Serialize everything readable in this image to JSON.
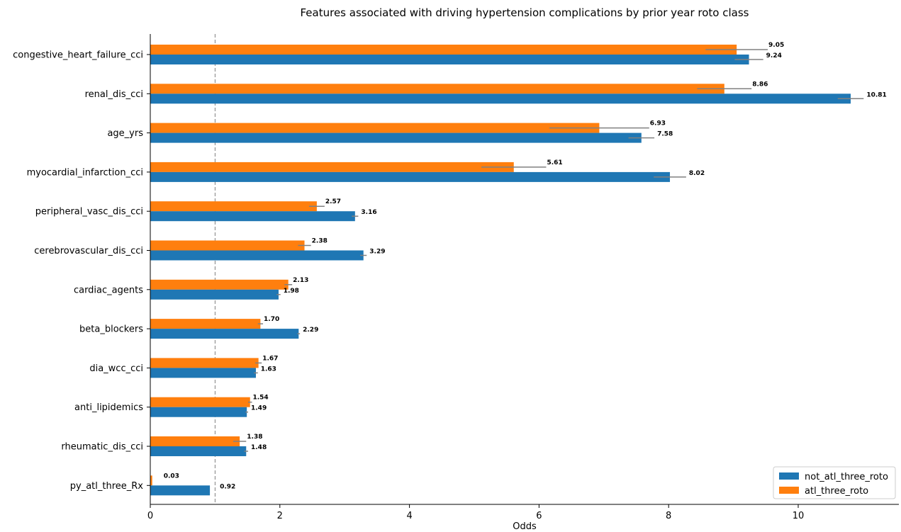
{
  "chart_data": {
    "type": "bar",
    "orientation": "horizontal",
    "title": "Features associated with driving hypertension complications by prior year roto class",
    "xlabel": "Odds",
    "ylabel": "",
    "xlim": [
      0,
      11.6
    ],
    "xticks": [
      0,
      2,
      4,
      6,
      8,
      10
    ],
    "reference_line_x": 1,
    "grid": false,
    "legend_position": "bottom-right",
    "categories": [
      "congestive_heart_failure_cci",
      "renal_dis_cci",
      "age_yrs",
      "myocardial_infarction_cci",
      "peripheral_vasc_dis_cci",
      "cerebrovascular_dis_cci",
      "cardiac_agents",
      "beta_blockers",
      "dia_wcc_cci",
      "anti_lipidemics",
      "rheumatic_dis_cci",
      "py_atl_three_Rx"
    ],
    "series": [
      {
        "name": "not_atl_three_roto",
        "color": "#1f77b4",
        "values": [
          9.24,
          10.81,
          7.58,
          8.02,
          3.16,
          3.29,
          1.98,
          2.29,
          1.63,
          1.49,
          1.48,
          0.92
        ],
        "labels": [
          "9.24",
          "10.81",
          "7.58",
          "8.02",
          "3.16",
          "3.29",
          "1.98",
          "2.29",
          "1.63",
          "1.49",
          "1.48",
          "0.92"
        ],
        "errors": [
          0.22,
          0.2,
          0.2,
          0.25,
          0.05,
          0.05,
          0.03,
          0.02,
          0.03,
          0.02,
          0.03,
          0.0
        ]
      },
      {
        "name": "atl_three_roto",
        "color": "#ff7f0e",
        "values": [
          9.05,
          8.86,
          6.93,
          5.61,
          2.57,
          2.38,
          2.13,
          1.7,
          1.67,
          1.54,
          1.38,
          0.03
        ],
        "labels": [
          "9.05",
          "8.86",
          "6.93",
          "5.61",
          "2.57",
          "2.38",
          "2.13",
          "1.70",
          "1.67",
          "1.54",
          "1.38",
          "0.03"
        ],
        "errors": [
          0.48,
          0.42,
          0.77,
          0.5,
          0.12,
          0.1,
          0.06,
          0.04,
          0.05,
          0.03,
          0.1,
          0.0
        ]
      }
    ]
  }
}
